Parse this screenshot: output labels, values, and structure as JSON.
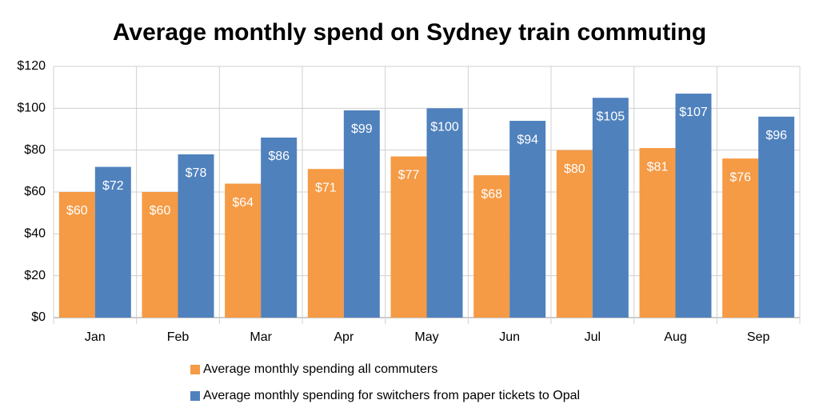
{
  "chart_data": {
    "type": "bar",
    "title": "Average monthly spend on Sydney train commuting",
    "categories": [
      "Jan",
      "Feb",
      "Mar",
      "Apr",
      "May",
      "Jun",
      "Jul",
      "Aug",
      "Sep"
    ],
    "series": [
      {
        "name": "Average monthly spending all commuters",
        "color": "#f59a45",
        "values": [
          60,
          60,
          64,
          71,
          77,
          68,
          80,
          81,
          76
        ],
        "value_labels": [
          "$60",
          "$60",
          "$64",
          "$71",
          "$77",
          "$68",
          "$80",
          "$81",
          "$76"
        ]
      },
      {
        "name": "Average monthly spending for switchers from paper tickets to Opal",
        "color": "#4f81bd",
        "values": [
          72,
          78,
          86,
          99,
          100,
          94,
          105,
          107,
          96
        ],
        "value_labels": [
          "$72",
          "$78",
          "$86",
          "$99",
          "$100",
          "$94",
          "$105",
          "$107",
          "$96"
        ]
      }
    ],
    "ylim": [
      0,
      120
    ],
    "yticks": [
      {
        "value": 0,
        "label": "$0"
      },
      {
        "value": 20,
        "label": "$20"
      },
      {
        "value": 40,
        "label": "$40"
      },
      {
        "value": 60,
        "label": "$60"
      },
      {
        "value": 80,
        "label": "$80"
      },
      {
        "value": 100,
        "label": "$100"
      },
      {
        "value": 120,
        "label": "$120"
      }
    ],
    "grid": true,
    "legend": "bottom"
  }
}
